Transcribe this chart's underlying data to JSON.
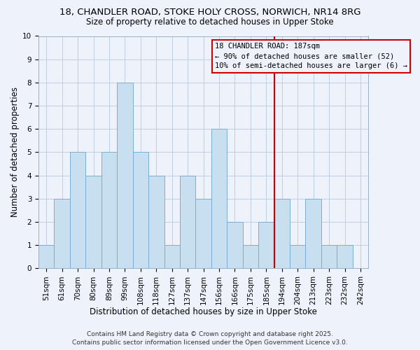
{
  "title": "18, CHANDLER ROAD, STOKE HOLY CROSS, NORWICH, NR14 8RG",
  "subtitle": "Size of property relative to detached houses in Upper Stoke",
  "xlabel": "Distribution of detached houses by size in Upper Stoke",
  "ylabel": "Number of detached properties",
  "categories": [
    "51sqm",
    "61sqm",
    "70sqm",
    "80sqm",
    "89sqm",
    "99sqm",
    "108sqm",
    "118sqm",
    "127sqm",
    "137sqm",
    "147sqm",
    "156sqm",
    "166sqm",
    "175sqm",
    "185sqm",
    "194sqm",
    "204sqm",
    "213sqm",
    "223sqm",
    "232sqm",
    "242sqm"
  ],
  "values": [
    1,
    3,
    5,
    4,
    5,
    8,
    5,
    4,
    1,
    4,
    3,
    6,
    2,
    1,
    2,
    3,
    1,
    3,
    1,
    1,
    0
  ],
  "bar_color": "#c8dff0",
  "bar_edge_color": "#7aaed6",
  "background_color": "#eef2fb",
  "grid_color": "#c0cfe0",
  "vline_x": 14.5,
  "vline_color": "#cc0000",
  "ylim": [
    0,
    10
  ],
  "yticks": [
    0,
    1,
    2,
    3,
    4,
    5,
    6,
    7,
    8,
    9,
    10
  ],
  "annotation_title": "18 CHANDLER ROAD: 187sqm",
  "annotation_line1": "← 90% of detached houses are smaller (52)",
  "annotation_line2": "10% of semi-detached houses are larger (6) →",
  "annotation_box_edge": "#cc0000",
  "footer1": "Contains HM Land Registry data © Crown copyright and database right 2025.",
  "footer2": "Contains public sector information licensed under the Open Government Licence v3.0.",
  "title_fontsize": 9.5,
  "subtitle_fontsize": 8.5,
  "axis_label_fontsize": 8.5,
  "tick_fontsize": 7.5,
  "footer_fontsize": 6.5,
  "annotation_fontsize": 7.5
}
